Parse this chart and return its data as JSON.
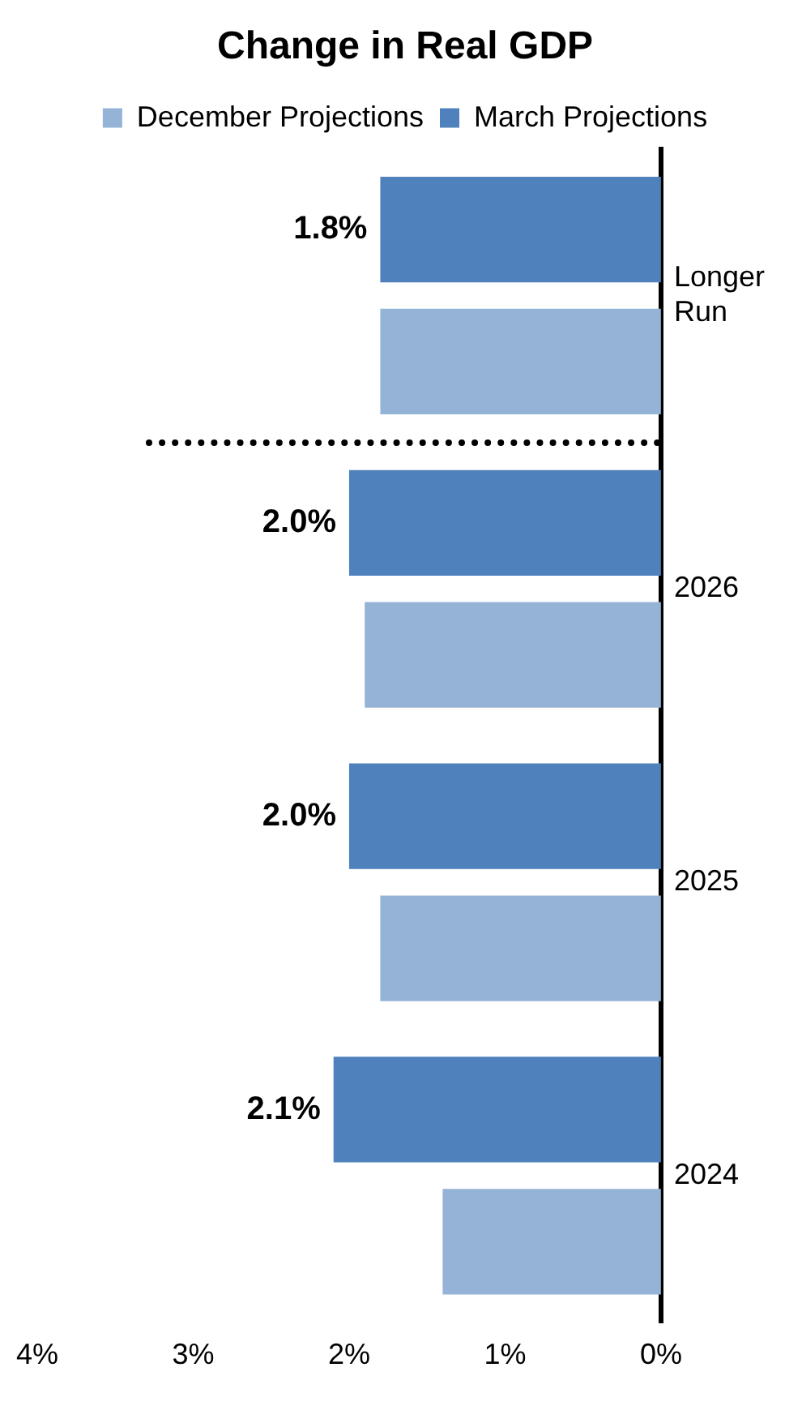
{
  "chart_data": {
    "type": "bar",
    "title": "Change in Real GDP",
    "orientation": "horizontal",
    "categories": [
      "Longer Run",
      "2026",
      "2025",
      "2024"
    ],
    "series": [
      {
        "name": "December Projections",
        "color": "#95b3d7",
        "values": [
          1.8,
          1.9,
          1.8,
          1.4
        ]
      },
      {
        "name": "March Projections",
        "color": "#4f81bd",
        "values": [
          1.8,
          2.0,
          2.0,
          2.1
        ],
        "value_labels": [
          "1.8%",
          "2.0%",
          "2.0%",
          "2.1%"
        ]
      }
    ],
    "xlim": [
      4,
      0
    ],
    "xticks": [
      {
        "value": 4,
        "label": "4%"
      },
      {
        "value": 3,
        "label": "3%"
      },
      {
        "value": 2,
        "label": "2%"
      },
      {
        "value": 1,
        "label": "1%"
      },
      {
        "value": 0,
        "label": "0%"
      }
    ],
    "grid": false,
    "legend": "top"
  }
}
